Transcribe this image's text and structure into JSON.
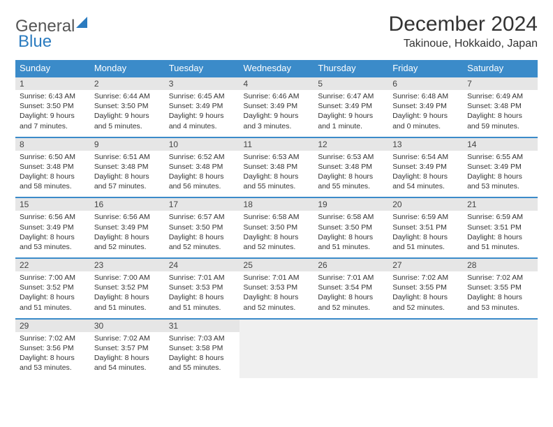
{
  "logo": {
    "text1": "General",
    "text2": "Blue"
  },
  "title": "December 2024",
  "location": "Takinoue, Hokkaido, Japan",
  "day_headers": [
    "Sunday",
    "Monday",
    "Tuesday",
    "Wednesday",
    "Thursday",
    "Friday",
    "Saturday"
  ],
  "colors": {
    "header_bg": "#3b8bc9",
    "header_text": "#ffffff",
    "daynum_bg": "#e6e6e6",
    "row_border": "#3b8bc9",
    "empty_bg": "#f0f0f0"
  },
  "weeks": [
    [
      {
        "n": "1",
        "sr": "6:43 AM",
        "ss": "3:50 PM",
        "dl": "9 hours and 7 minutes."
      },
      {
        "n": "2",
        "sr": "6:44 AM",
        "ss": "3:50 PM",
        "dl": "9 hours and 5 minutes."
      },
      {
        "n": "3",
        "sr": "6:45 AM",
        "ss": "3:49 PM",
        "dl": "9 hours and 4 minutes."
      },
      {
        "n": "4",
        "sr": "6:46 AM",
        "ss": "3:49 PM",
        "dl": "9 hours and 3 minutes."
      },
      {
        "n": "5",
        "sr": "6:47 AM",
        "ss": "3:49 PM",
        "dl": "9 hours and 1 minute."
      },
      {
        "n": "6",
        "sr": "6:48 AM",
        "ss": "3:49 PM",
        "dl": "9 hours and 0 minutes."
      },
      {
        "n": "7",
        "sr": "6:49 AM",
        "ss": "3:48 PM",
        "dl": "8 hours and 59 minutes."
      }
    ],
    [
      {
        "n": "8",
        "sr": "6:50 AM",
        "ss": "3:48 PM",
        "dl": "8 hours and 58 minutes."
      },
      {
        "n": "9",
        "sr": "6:51 AM",
        "ss": "3:48 PM",
        "dl": "8 hours and 57 minutes."
      },
      {
        "n": "10",
        "sr": "6:52 AM",
        "ss": "3:48 PM",
        "dl": "8 hours and 56 minutes."
      },
      {
        "n": "11",
        "sr": "6:53 AM",
        "ss": "3:48 PM",
        "dl": "8 hours and 55 minutes."
      },
      {
        "n": "12",
        "sr": "6:53 AM",
        "ss": "3:48 PM",
        "dl": "8 hours and 55 minutes."
      },
      {
        "n": "13",
        "sr": "6:54 AM",
        "ss": "3:49 PM",
        "dl": "8 hours and 54 minutes."
      },
      {
        "n": "14",
        "sr": "6:55 AM",
        "ss": "3:49 PM",
        "dl": "8 hours and 53 minutes."
      }
    ],
    [
      {
        "n": "15",
        "sr": "6:56 AM",
        "ss": "3:49 PM",
        "dl": "8 hours and 53 minutes."
      },
      {
        "n": "16",
        "sr": "6:56 AM",
        "ss": "3:49 PM",
        "dl": "8 hours and 52 minutes."
      },
      {
        "n": "17",
        "sr": "6:57 AM",
        "ss": "3:50 PM",
        "dl": "8 hours and 52 minutes."
      },
      {
        "n": "18",
        "sr": "6:58 AM",
        "ss": "3:50 PM",
        "dl": "8 hours and 52 minutes."
      },
      {
        "n": "19",
        "sr": "6:58 AM",
        "ss": "3:50 PM",
        "dl": "8 hours and 51 minutes."
      },
      {
        "n": "20",
        "sr": "6:59 AM",
        "ss": "3:51 PM",
        "dl": "8 hours and 51 minutes."
      },
      {
        "n": "21",
        "sr": "6:59 AM",
        "ss": "3:51 PM",
        "dl": "8 hours and 51 minutes."
      }
    ],
    [
      {
        "n": "22",
        "sr": "7:00 AM",
        "ss": "3:52 PM",
        "dl": "8 hours and 51 minutes."
      },
      {
        "n": "23",
        "sr": "7:00 AM",
        "ss": "3:52 PM",
        "dl": "8 hours and 51 minutes."
      },
      {
        "n": "24",
        "sr": "7:01 AM",
        "ss": "3:53 PM",
        "dl": "8 hours and 51 minutes."
      },
      {
        "n": "25",
        "sr": "7:01 AM",
        "ss": "3:53 PM",
        "dl": "8 hours and 52 minutes."
      },
      {
        "n": "26",
        "sr": "7:01 AM",
        "ss": "3:54 PM",
        "dl": "8 hours and 52 minutes."
      },
      {
        "n": "27",
        "sr": "7:02 AM",
        "ss": "3:55 PM",
        "dl": "8 hours and 52 minutes."
      },
      {
        "n": "28",
        "sr": "7:02 AM",
        "ss": "3:55 PM",
        "dl": "8 hours and 53 minutes."
      }
    ],
    [
      {
        "n": "29",
        "sr": "7:02 AM",
        "ss": "3:56 PM",
        "dl": "8 hours and 53 minutes."
      },
      {
        "n": "30",
        "sr": "7:02 AM",
        "ss": "3:57 PM",
        "dl": "8 hours and 54 minutes."
      },
      {
        "n": "31",
        "sr": "7:03 AM",
        "ss": "3:58 PM",
        "dl": "8 hours and 55 minutes."
      },
      null,
      null,
      null,
      null
    ]
  ],
  "labels": {
    "sunrise": "Sunrise:",
    "sunset": "Sunset:",
    "daylight": "Daylight:"
  }
}
